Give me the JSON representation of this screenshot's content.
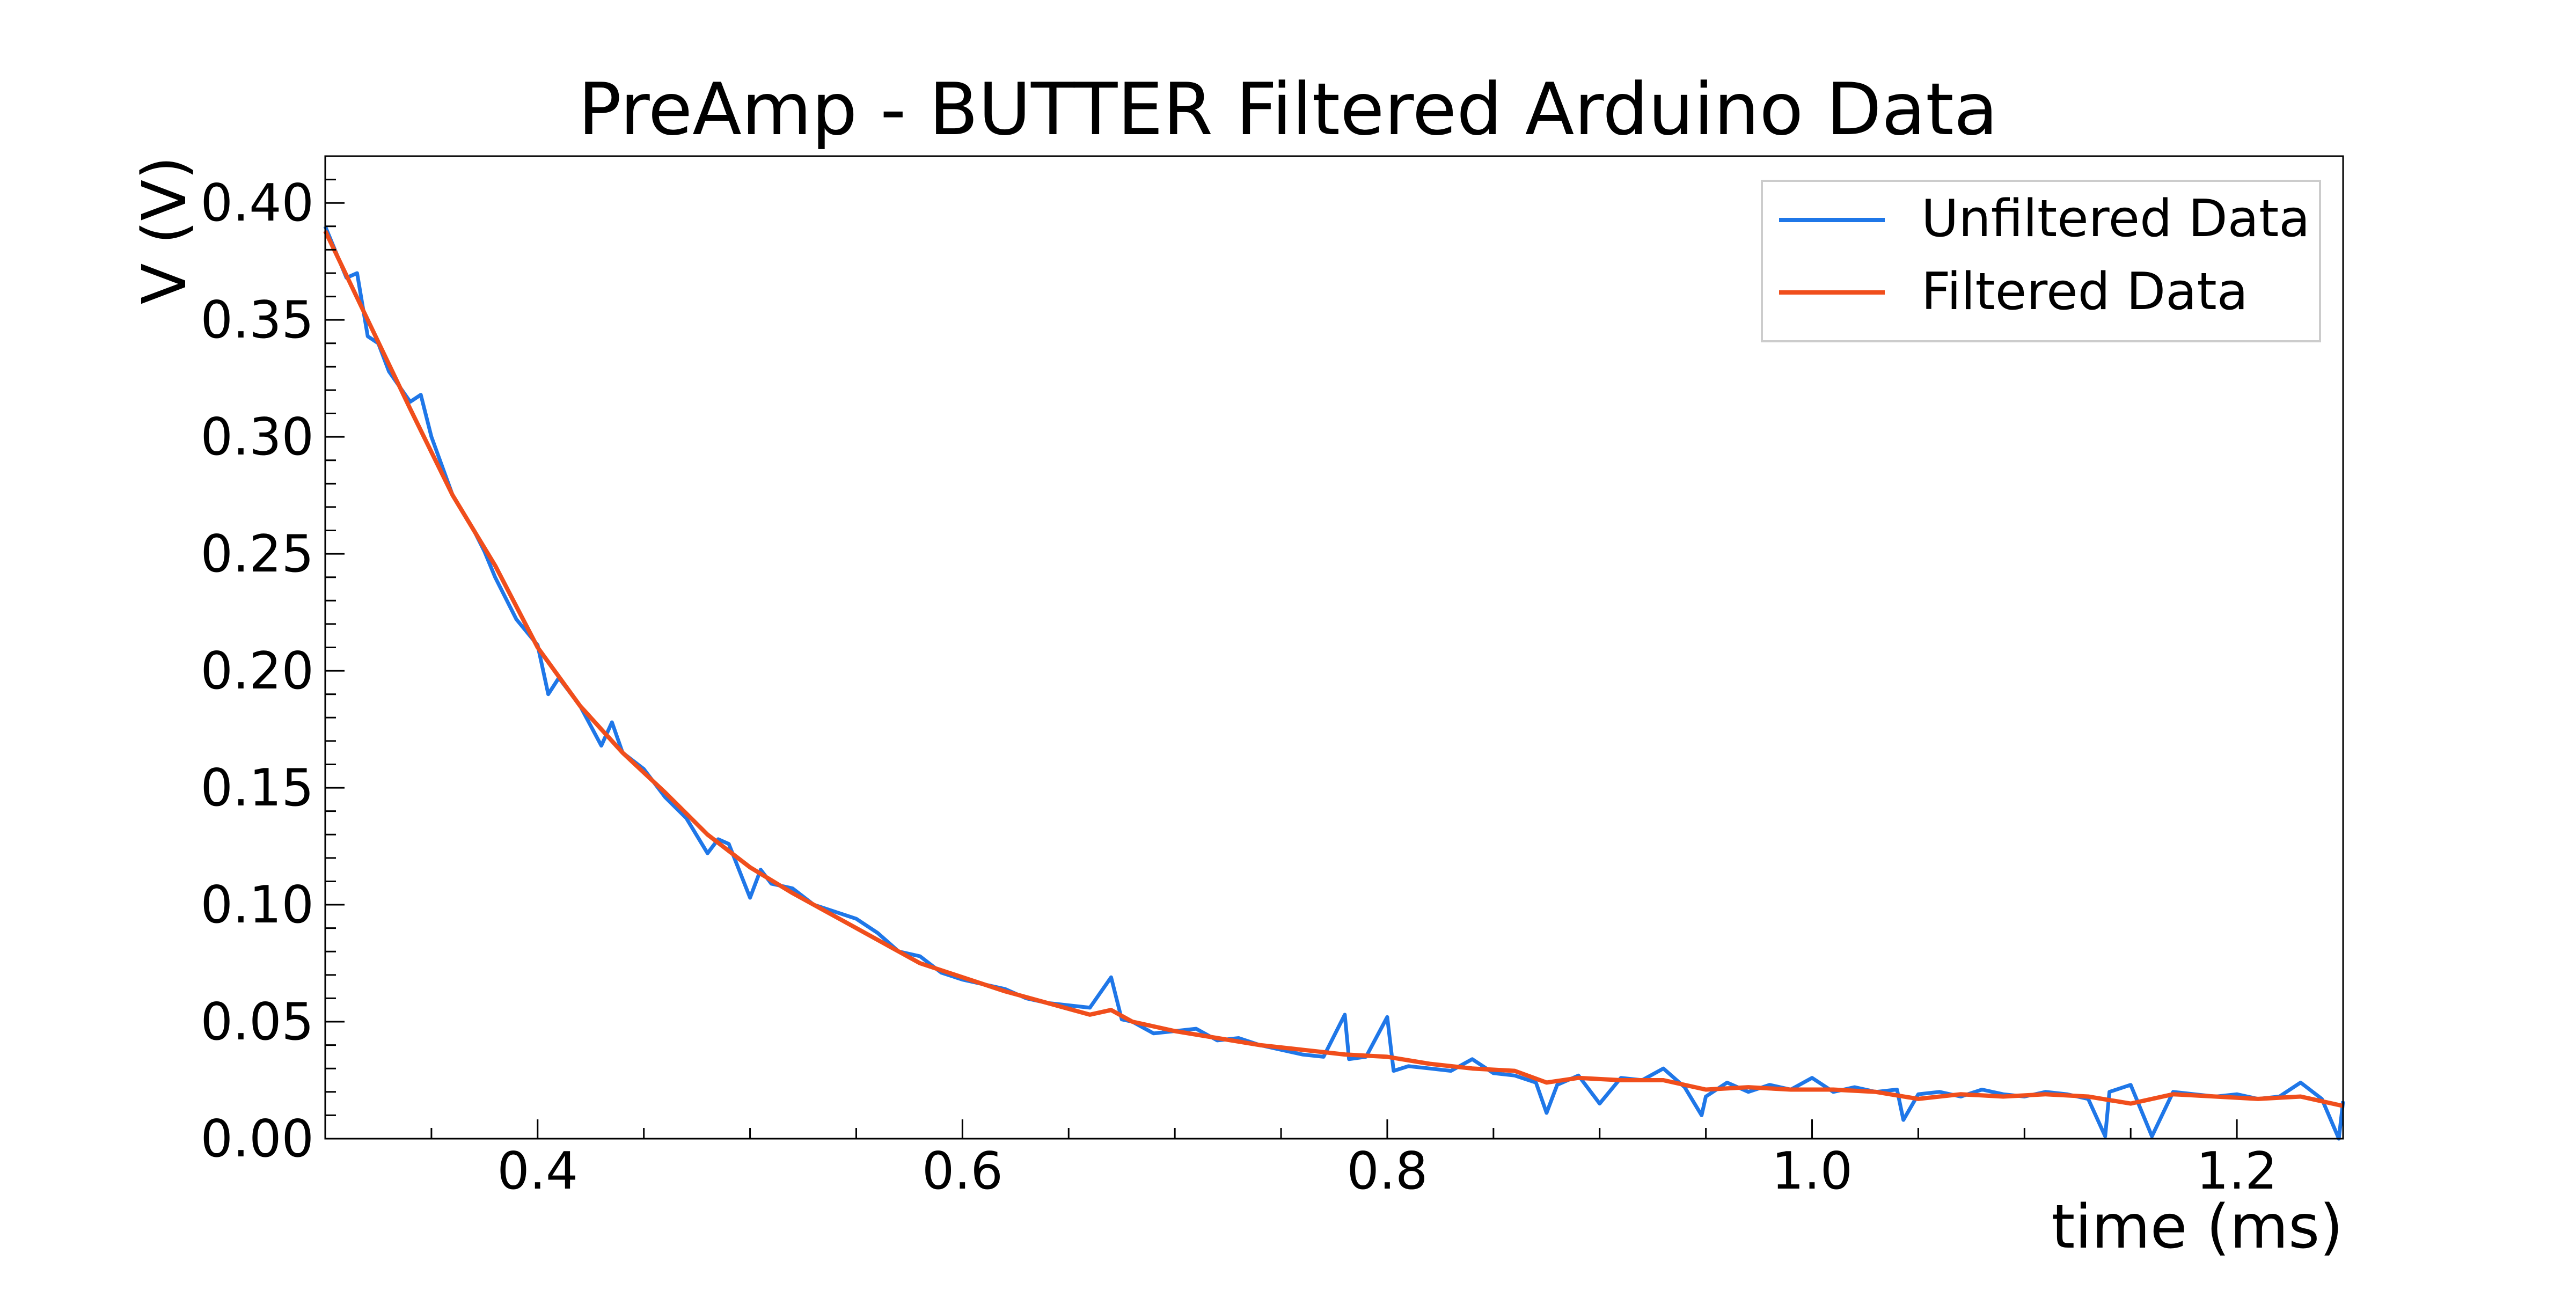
{
  "chart_data": {
    "type": "line",
    "title": "PreAmp - BUTTER Filtered Arduino Data",
    "xlabel": "time (ms)",
    "ylabel": "V (V)",
    "xlim": [
      0.3,
      1.25
    ],
    "ylim": [
      0.0,
      0.42
    ],
    "x_ticks": [
      0.4,
      0.6,
      0.8,
      1.0,
      1.2
    ],
    "x_tick_labels": [
      "0.4",
      "0.6",
      "0.8",
      "1.0",
      "1.2"
    ],
    "y_ticks": [
      0.0,
      0.05,
      0.1,
      0.15,
      0.2,
      0.25,
      0.3,
      0.35,
      0.4
    ],
    "y_tick_labels": [
      "0.00",
      "0.05",
      "0.10",
      "0.15",
      "0.20",
      "0.25",
      "0.30",
      "0.35",
      "0.40"
    ],
    "grid": false,
    "legend_position": "top-right",
    "series": [
      {
        "name": "Unfiltered Data",
        "color": "#1f77e8",
        "x": [
          0.3,
          0.31,
          0.315,
          0.32,
          0.325,
          0.33,
          0.34,
          0.345,
          0.35,
          0.36,
          0.37,
          0.375,
          0.38,
          0.39,
          0.4,
          0.405,
          0.41,
          0.42,
          0.43,
          0.435,
          0.44,
          0.45,
          0.46,
          0.47,
          0.48,
          0.485,
          0.49,
          0.5,
          0.505,
          0.51,
          0.52,
          0.53,
          0.54,
          0.55,
          0.56,
          0.57,
          0.58,
          0.59,
          0.6,
          0.61,
          0.62,
          0.63,
          0.64,
          0.65,
          0.66,
          0.67,
          0.675,
          0.68,
          0.69,
          0.7,
          0.71,
          0.72,
          0.73,
          0.74,
          0.75,
          0.76,
          0.77,
          0.78,
          0.782,
          0.79,
          0.8,
          0.803,
          0.81,
          0.82,
          0.83,
          0.84,
          0.85,
          0.86,
          0.87,
          0.875,
          0.88,
          0.89,
          0.9,
          0.91,
          0.92,
          0.93,
          0.94,
          0.948,
          0.95,
          0.96,
          0.97,
          0.98,
          0.99,
          1.0,
          1.01,
          1.02,
          1.03,
          1.04,
          1.043,
          1.05,
          1.06,
          1.07,
          1.08,
          1.09,
          1.1,
          1.11,
          1.12,
          1.13,
          1.138,
          1.14,
          1.15,
          1.16,
          1.17,
          1.18,
          1.19,
          1.2,
          1.21,
          1.22,
          1.23,
          1.24,
          1.248,
          1.25
        ],
        "y": [
          0.39,
          0.368,
          0.37,
          0.343,
          0.34,
          0.328,
          0.315,
          0.318,
          0.3,
          0.275,
          0.26,
          0.251,
          0.24,
          0.222,
          0.211,
          0.19,
          0.197,
          0.185,
          0.168,
          0.178,
          0.165,
          0.158,
          0.146,
          0.137,
          0.122,
          0.128,
          0.126,
          0.103,
          0.115,
          0.109,
          0.107,
          0.1,
          0.097,
          0.094,
          0.088,
          0.08,
          0.078,
          0.071,
          0.068,
          0.066,
          0.064,
          0.06,
          0.058,
          0.057,
          0.056,
          0.069,
          0.051,
          0.05,
          0.045,
          0.046,
          0.047,
          0.042,
          0.043,
          0.04,
          0.038,
          0.036,
          0.035,
          0.053,
          0.034,
          0.035,
          0.052,
          0.029,
          0.031,
          0.03,
          0.029,
          0.034,
          0.028,
          0.027,
          0.024,
          0.011,
          0.023,
          0.027,
          0.015,
          0.026,
          0.025,
          0.03,
          0.022,
          0.01,
          0.018,
          0.024,
          0.02,
          0.023,
          0.021,
          0.026,
          0.02,
          0.022,
          0.02,
          0.021,
          0.008,
          0.019,
          0.02,
          0.018,
          0.021,
          0.019,
          0.018,
          0.02,
          0.019,
          0.017,
          0.001,
          0.02,
          0.023,
          0.001,
          0.02,
          0.019,
          0.018,
          0.019,
          0.017,
          0.018,
          0.024,
          0.017,
          0.0,
          0.016
        ]
      },
      {
        "name": "Filtered Data",
        "color": "#f04e1c",
        "x": [
          0.3,
          0.32,
          0.34,
          0.36,
          0.38,
          0.4,
          0.42,
          0.44,
          0.46,
          0.48,
          0.5,
          0.52,
          0.54,
          0.56,
          0.58,
          0.6,
          0.62,
          0.64,
          0.66,
          0.67,
          0.68,
          0.7,
          0.72,
          0.74,
          0.76,
          0.78,
          0.8,
          0.82,
          0.84,
          0.86,
          0.875,
          0.89,
          0.91,
          0.93,
          0.95,
          0.97,
          0.99,
          1.01,
          1.03,
          1.05,
          1.07,
          1.09,
          1.11,
          1.13,
          1.15,
          1.17,
          1.19,
          1.21,
          1.23,
          1.25
        ],
        "y": [
          0.388,
          0.35,
          0.312,
          0.275,
          0.245,
          0.21,
          0.185,
          0.165,
          0.148,
          0.13,
          0.116,
          0.105,
          0.095,
          0.085,
          0.075,
          0.069,
          0.063,
          0.058,
          0.053,
          0.055,
          0.05,
          0.046,
          0.043,
          0.04,
          0.038,
          0.036,
          0.035,
          0.032,
          0.03,
          0.029,
          0.024,
          0.026,
          0.025,
          0.025,
          0.021,
          0.022,
          0.021,
          0.021,
          0.02,
          0.017,
          0.019,
          0.018,
          0.019,
          0.018,
          0.015,
          0.019,
          0.018,
          0.017,
          0.018,
          0.014
        ]
      }
    ]
  }
}
